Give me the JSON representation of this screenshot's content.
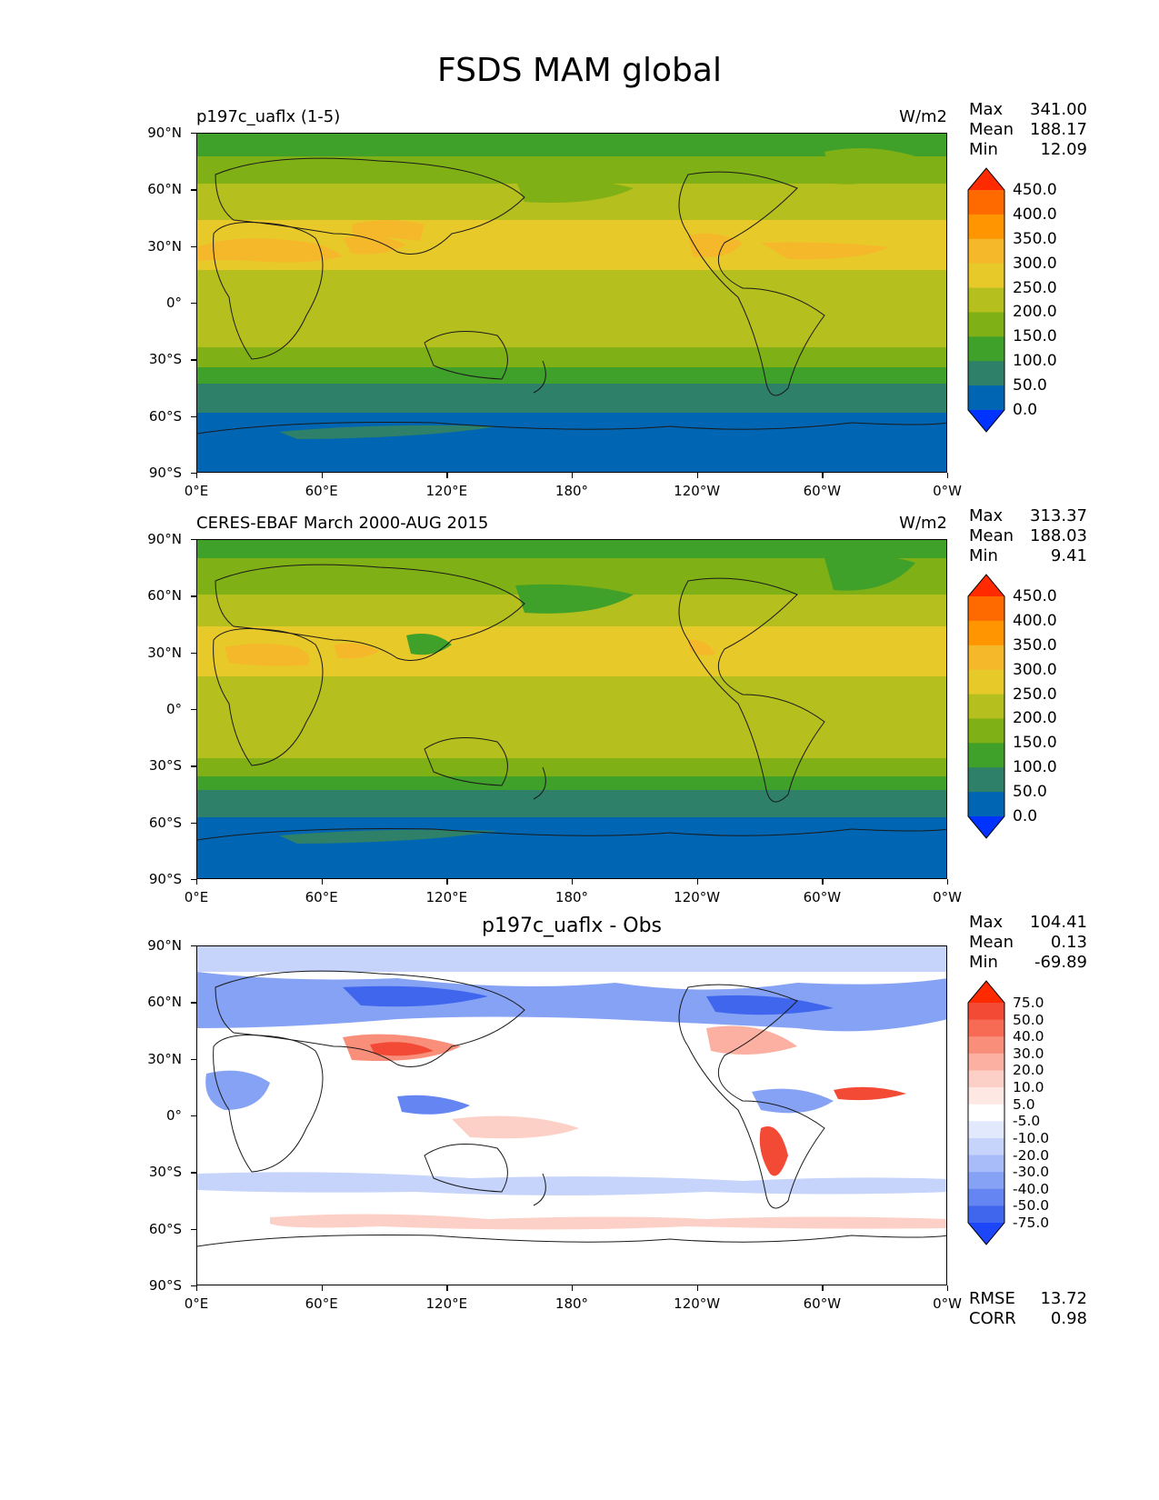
{
  "figure": {
    "title": "FSDS MAM global"
  },
  "axes": {
    "lat_labels": [
      "90°N",
      "60°N",
      "30°N",
      "0°",
      "30°S",
      "60°S",
      "90°S"
    ],
    "lon_labels": [
      "0°E",
      "60°E",
      "120°E",
      "180°",
      "120°W",
      "60°W",
      "0°W"
    ]
  },
  "panels": [
    {
      "title": "p197c_uaflx (1-5)",
      "units": "W/m2",
      "stats": [
        {
          "label": "Max",
          "value": "341.00"
        },
        {
          "label": "Mean",
          "value": "188.17"
        },
        {
          "label": "Min",
          "value": "12.09"
        }
      ],
      "colorbar": {
        "labels": [
          "450.0",
          "400.0",
          "350.0",
          "300.0",
          "250.0",
          "200.0",
          "150.0",
          "100.0",
          "50.0",
          "0.0"
        ],
        "colors": [
          "#ff2a00",
          "#ff6a00",
          "#ff9500",
          "#f5b82a",
          "#e8c92a",
          "#b5bf1e",
          "#7fb015",
          "#3fa02a",
          "#2e8068",
          "#0066b3",
          "#0033ff"
        ]
      }
    },
    {
      "title": "CERES-EBAF March 2000-AUG 2015",
      "units": "W/m2",
      "stats": [
        {
          "label": "Max",
          "value": "313.37"
        },
        {
          "label": "Mean",
          "value": "188.03"
        },
        {
          "label": "Min",
          "value": "9.41"
        }
      ],
      "colorbar": {
        "labels": [
          "450.0",
          "400.0",
          "350.0",
          "300.0",
          "250.0",
          "200.0",
          "150.0",
          "100.0",
          "50.0",
          "0.0"
        ],
        "colors": [
          "#ff2a00",
          "#ff6a00",
          "#ff9500",
          "#f5b82a",
          "#e8c92a",
          "#b5bf1e",
          "#7fb015",
          "#3fa02a",
          "#2e8068",
          "#0066b3",
          "#0033ff"
        ]
      }
    },
    {
      "title": "p197c_uaflx - Obs",
      "stats": [
        {
          "label": "Max",
          "value": "104.41"
        },
        {
          "label": "Mean",
          "value": "0.13"
        },
        {
          "label": "Min",
          "value": "-69.89"
        }
      ],
      "footer_stats": [
        {
          "label": "RMSE",
          "value": "13.72"
        },
        {
          "label": "CORR",
          "value": "0.98"
        }
      ],
      "colorbar": {
        "labels": [
          "75.0",
          "50.0",
          "40.0",
          "30.0",
          "20.0",
          "10.0",
          "5.0",
          "-5.0",
          "-10.0",
          "-20.0",
          "-30.0",
          "-40.0",
          "-50.0",
          "-75.0"
        ],
        "colors": [
          "#ff2a00",
          "#f24a35",
          "#f76b55",
          "#f98e7a",
          "#fbb0a2",
          "#fcd0c6",
          "#fde8e3",
          "#ffffff",
          "#e3e9fd",
          "#c6d4fb",
          "#a7bcf8",
          "#86a2f5",
          "#6485f2",
          "#4066ee",
          "#1c46f7"
        ]
      }
    }
  ],
  "chart_data": [
    {
      "type": "heatmap",
      "title": "p197c_uaflx (1-5)",
      "units": "W/m2",
      "xlim": [
        0,
        360
      ],
      "ylim": [
        -90,
        90
      ],
      "zonal_mean_fsds": {
        "lat": [
          90,
          75,
          60,
          45,
          30,
          15,
          0,
          -15,
          -30,
          -45,
          -60,
          -75,
          -90
        ],
        "value": [
          120,
          125,
          140,
          190,
          260,
          270,
          235,
          240,
          200,
          130,
          55,
          30,
          30
        ]
      },
      "stats": {
        "max": 341.0,
        "mean": 188.17,
        "min": 12.09
      }
    },
    {
      "type": "heatmap",
      "title": "CERES-EBAF March 2000-AUG 2015",
      "units": "W/m2",
      "xlim": [
        0,
        360
      ],
      "ylim": [
        -90,
        90
      ],
      "zonal_mean_fsds": {
        "lat": [
          90,
          75,
          60,
          45,
          30,
          15,
          0,
          -15,
          -30,
          -45,
          -60,
          -75,
          -90
        ],
        "value": [
          120,
          140,
          150,
          200,
          260,
          265,
          230,
          240,
          200,
          140,
          60,
          30,
          30
        ]
      },
      "stats": {
        "max": 313.37,
        "mean": 188.03,
        "min": 9.41
      }
    },
    {
      "type": "heatmap",
      "title": "p197c_uaflx - Obs",
      "xlim": [
        0,
        360
      ],
      "ylim": [
        -90,
        90
      ],
      "zonal_mean_diff": {
        "lat": [
          90,
          75,
          60,
          45,
          30,
          15,
          0,
          -15,
          -30,
          -45,
          -60,
          -75,
          -90
        ],
        "value": [
          -10,
          -15,
          -20,
          -5,
          15,
          5,
          0,
          5,
          5,
          -5,
          -5,
          5,
          0
        ]
      },
      "stats": {
        "max": 104.41,
        "mean": 0.13,
        "min": -69.89,
        "rmse": 13.72,
        "corr": 0.98
      }
    }
  ]
}
